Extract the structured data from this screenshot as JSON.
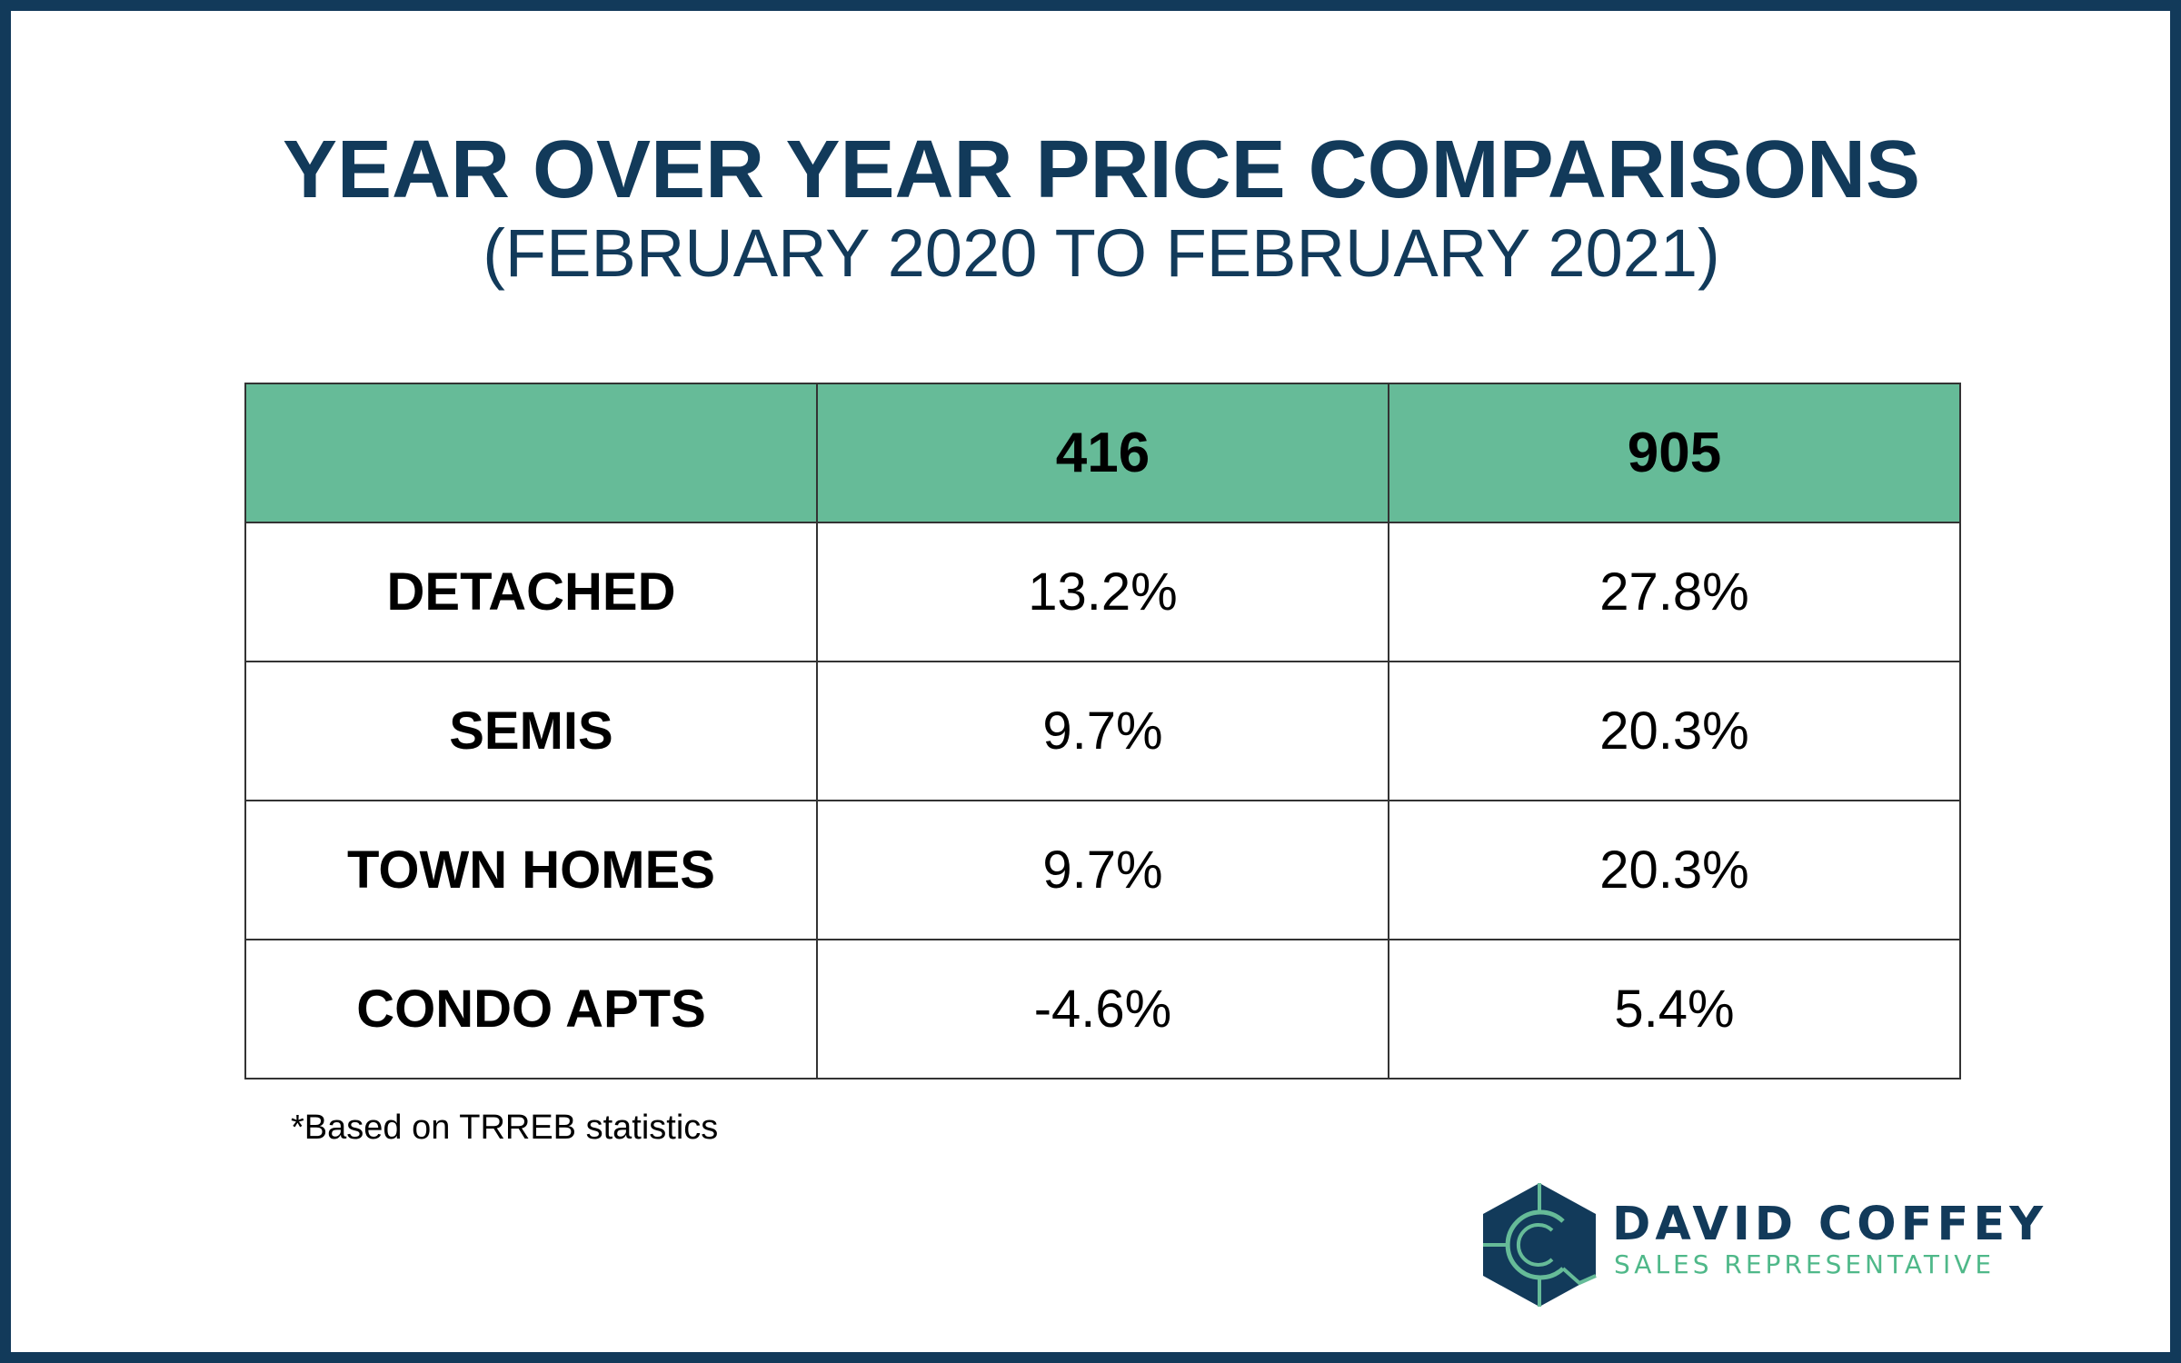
{
  "title": "YEAR OVER YEAR PRICE COMPARISONS",
  "subtitle": "(FEBRUARY 2020 TO FEBRUARY 2021)",
  "footnote": "*Based on TRREB statistics",
  "brand": {
    "name": "DAVID COFFEY",
    "role": "SALES REPRESENTATIVE",
    "logo_icon": "hexagon-c-logo-icon"
  },
  "colors": {
    "primary": "#123a5a",
    "header_fill": "#66bb98",
    "accent": "#4fb889"
  },
  "chart_data": {
    "type": "table",
    "title": "YEAR OVER YEAR PRICE COMPARISONS",
    "subtitle": "(FEBRUARY 2020 TO FEBRUARY 2021)",
    "columns": [
      "",
      "416",
      "905"
    ],
    "rows": [
      {
        "label": "DETACHED",
        "values": [
          "13.2%",
          "27.8%"
        ]
      },
      {
        "label": "SEMIS",
        "values": [
          "9.7%",
          "20.3%"
        ]
      },
      {
        "label": "TOWN HOMES",
        "values": [
          "9.7%",
          "20.3%"
        ]
      },
      {
        "label": "CONDO APTS",
        "values": [
          "-4.6%",
          "5.4%"
        ]
      }
    ],
    "footnote": "*Based on TRREB statistics"
  }
}
